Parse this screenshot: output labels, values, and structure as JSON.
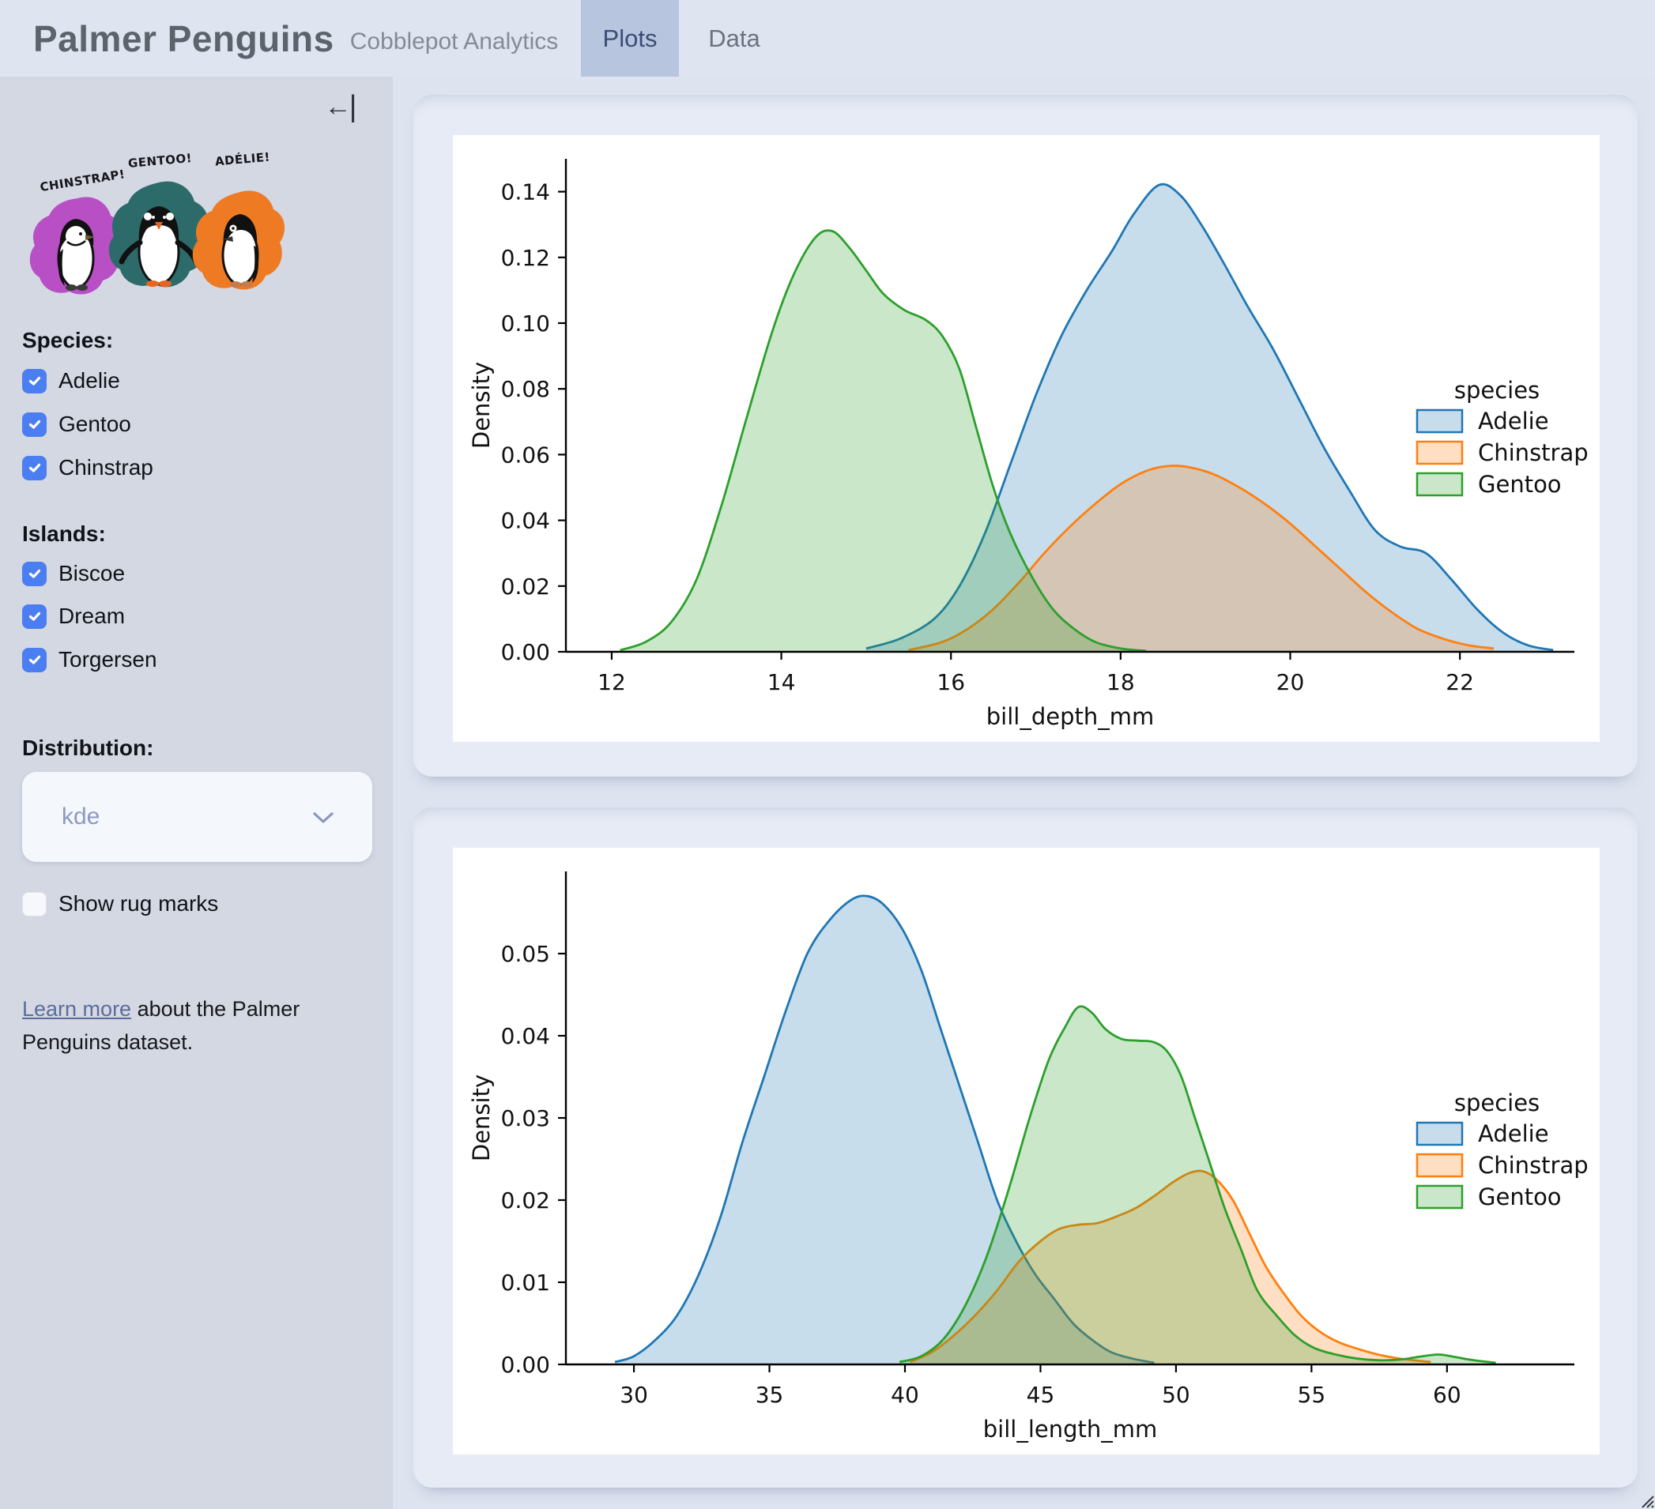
{
  "header": {
    "title": "Palmer Penguins",
    "subtitle": "Cobblepot Analytics",
    "tabs": [
      {
        "label": "Plots",
        "active": true
      },
      {
        "label": "Data",
        "active": false
      }
    ]
  },
  "sidebar": {
    "collapse_icon_arrow": "←",
    "collapse_icon_bar": "|",
    "artwork": {
      "labels": [
        "CHINSTRAP!",
        "GENTOO!",
        "ADÉLIE!"
      ],
      "splash_colors": {
        "chinstrap": "#b84fc5",
        "gentoo": "#2d6b6a",
        "adelie": "#ee7b24"
      }
    },
    "species": {
      "label": "Species:",
      "options": [
        {
          "label": "Adelie",
          "checked": true
        },
        {
          "label": "Gentoo",
          "checked": true
        },
        {
          "label": "Chinstrap",
          "checked": true
        }
      ]
    },
    "islands": {
      "label": "Islands:",
      "options": [
        {
          "label": "Biscoe",
          "checked": true
        },
        {
          "label": "Dream",
          "checked": true
        },
        {
          "label": "Torgersen",
          "checked": true
        }
      ]
    },
    "distribution": {
      "label": "Distribution:",
      "value": "kde"
    },
    "rug": {
      "label": "Show rug marks",
      "checked": false
    },
    "footer": {
      "link_text": "Learn more",
      "text_after": " about the Palmer Penguins dataset."
    }
  },
  "colors": {
    "checkbox_accent": "#4b7ef0",
    "tab_active_bg": "#b7c5de",
    "adelie": "#1f77b4",
    "chinstrap": "#ff7f0e",
    "gentoo": "#2ca02c",
    "fill_opacity": 0.25
  },
  "chart_data": [
    {
      "type": "area",
      "kind": "kde-density",
      "xlabel": "bill_depth_mm",
      "ylabel": "Density",
      "xlim": [
        11.46,
        23.35
      ],
      "ylim": [
        0,
        0.15
      ],
      "xticks": [
        12,
        14,
        16,
        18,
        20,
        22
      ],
      "yticks": [
        "0.00",
        "0.02",
        "0.04",
        "0.06",
        "0.08",
        "0.10",
        "0.12",
        "0.14"
      ],
      "legend": {
        "title": "species",
        "position": "right",
        "entries": [
          {
            "label": "Adelie",
            "color": "#1f77b4"
          },
          {
            "label": "Chinstrap",
            "color": "#ff7f0e"
          },
          {
            "label": "Gentoo",
            "color": "#2ca02c"
          }
        ]
      },
      "series": [
        {
          "name": "Adelie",
          "color": "#1f77b4",
          "points": [
            [
              15.0,
              0.001
            ],
            [
              15.4,
              0.004
            ],
            [
              15.8,
              0.01
            ],
            [
              16.1,
              0.02
            ],
            [
              16.4,
              0.036
            ],
            [
              16.7,
              0.057
            ],
            [
              17.0,
              0.078
            ],
            [
              17.3,
              0.096
            ],
            [
              17.6,
              0.11
            ],
            [
              17.9,
              0.122
            ],
            [
              18.15,
              0.133
            ],
            [
              18.45,
              0.142
            ],
            [
              18.7,
              0.139
            ],
            [
              18.95,
              0.13
            ],
            [
              19.2,
              0.119
            ],
            [
              19.5,
              0.105
            ],
            [
              19.8,
              0.092
            ],
            [
              20.1,
              0.077
            ],
            [
              20.4,
              0.062
            ],
            [
              20.7,
              0.049
            ],
            [
              21.0,
              0.037
            ],
            [
              21.3,
              0.032
            ],
            [
              21.6,
              0.03
            ],
            [
              21.9,
              0.022
            ],
            [
              22.2,
              0.013
            ],
            [
              22.5,
              0.006
            ],
            [
              22.8,
              0.002
            ],
            [
              23.1,
              0.0005
            ]
          ]
        },
        {
          "name": "Chinstrap",
          "color": "#ff7f0e",
          "points": [
            [
              15.5,
              0.0005
            ],
            [
              15.9,
              0.003
            ],
            [
              16.2,
              0.007
            ],
            [
              16.5,
              0.013
            ],
            [
              16.8,
              0.021
            ],
            [
              17.1,
              0.03
            ],
            [
              17.4,
              0.038
            ],
            [
              17.7,
              0.045
            ],
            [
              18.0,
              0.051
            ],
            [
              18.3,
              0.055
            ],
            [
              18.55,
              0.0565
            ],
            [
              18.8,
              0.0562
            ],
            [
              19.1,
              0.054
            ],
            [
              19.4,
              0.05
            ],
            [
              19.7,
              0.045
            ],
            [
              20.0,
              0.039
            ],
            [
              20.3,
              0.032
            ],
            [
              20.6,
              0.025
            ],
            [
              20.9,
              0.018
            ],
            [
              21.2,
              0.012
            ],
            [
              21.5,
              0.007
            ],
            [
              21.8,
              0.004
            ],
            [
              22.1,
              0.002
            ],
            [
              22.4,
              0.001
            ]
          ]
        },
        {
          "name": "Gentoo",
          "color": "#2ca02c",
          "points": [
            [
              12.1,
              0.0005
            ],
            [
              12.4,
              0.003
            ],
            [
              12.7,
              0.009
            ],
            [
              13.0,
              0.022
            ],
            [
              13.3,
              0.045
            ],
            [
              13.6,
              0.072
            ],
            [
              13.9,
              0.098
            ],
            [
              14.15,
              0.115
            ],
            [
              14.4,
              0.126
            ],
            [
              14.6,
              0.128
            ],
            [
              14.8,
              0.123
            ],
            [
              15.0,
              0.116
            ],
            [
              15.2,
              0.109
            ],
            [
              15.45,
              0.104
            ],
            [
              15.7,
              0.101
            ],
            [
              15.9,
              0.096
            ],
            [
              16.1,
              0.086
            ],
            [
              16.3,
              0.068
            ],
            [
              16.5,
              0.05
            ],
            [
              16.7,
              0.036
            ],
            [
              16.95,
              0.023
            ],
            [
              17.2,
              0.013
            ],
            [
              17.45,
              0.007
            ],
            [
              17.7,
              0.003
            ],
            [
              18.0,
              0.001
            ],
            [
              18.3,
              0.0003
            ]
          ]
        }
      ]
    },
    {
      "type": "area",
      "kind": "kde-density",
      "xlabel": "bill_length_mm",
      "ylabel": "Density",
      "xlim": [
        27.49,
        64.7
      ],
      "ylim": [
        0,
        0.06
      ],
      "xticks": [
        30,
        35,
        40,
        45,
        50,
        55,
        60
      ],
      "yticks": [
        "0.00",
        "0.01",
        "0.02",
        "0.03",
        "0.04",
        "0.05"
      ],
      "legend": {
        "title": "species",
        "position": "right",
        "entries": [
          {
            "label": "Adelie",
            "color": "#1f77b4"
          },
          {
            "label": "Chinstrap",
            "color": "#ff7f0e"
          },
          {
            "label": "Gentoo",
            "color": "#2ca02c"
          }
        ]
      },
      "series": [
        {
          "name": "Adelie",
          "color": "#1f77b4",
          "points": [
            [
              29.3,
              0.0003
            ],
            [
              30.0,
              0.001
            ],
            [
              30.8,
              0.003
            ],
            [
              31.6,
              0.006
            ],
            [
              32.4,
              0.011
            ],
            [
              33.2,
              0.018
            ],
            [
              34.0,
              0.027
            ],
            [
              34.8,
              0.035
            ],
            [
              35.6,
              0.043
            ],
            [
              36.4,
              0.05
            ],
            [
              37.2,
              0.054
            ],
            [
              38.0,
              0.0565
            ],
            [
              38.6,
              0.057
            ],
            [
              39.2,
              0.056
            ],
            [
              39.9,
              0.053
            ],
            [
              40.6,
              0.048
            ],
            [
              41.3,
              0.041
            ],
            [
              42.0,
              0.034
            ],
            [
              42.7,
              0.027
            ],
            [
              43.4,
              0.02
            ],
            [
              44.1,
              0.015
            ],
            [
              44.8,
              0.011
            ],
            [
              45.5,
              0.008
            ],
            [
              46.2,
              0.005
            ],
            [
              46.9,
              0.003
            ],
            [
              47.6,
              0.0015
            ],
            [
              48.4,
              0.0007
            ],
            [
              49.2,
              0.0002
            ]
          ]
        },
        {
          "name": "Chinstrap",
          "color": "#ff7f0e",
          "points": [
            [
              40.2,
              0.0003
            ],
            [
              41.0,
              0.0015
            ],
            [
              41.8,
              0.0035
            ],
            [
              42.6,
              0.006
            ],
            [
              43.4,
              0.009
            ],
            [
              44.2,
              0.0125
            ],
            [
              45.0,
              0.015
            ],
            [
              45.7,
              0.0165
            ],
            [
              46.4,
              0.017
            ],
            [
              47.1,
              0.0172
            ],
            [
              47.8,
              0.018
            ],
            [
              48.5,
              0.019
            ],
            [
              49.2,
              0.0205
            ],
            [
              49.9,
              0.0222
            ],
            [
              50.5,
              0.0233
            ],
            [
              51.0,
              0.0235
            ],
            [
              51.5,
              0.0225
            ],
            [
              52.1,
              0.02
            ],
            [
              52.7,
              0.016
            ],
            [
              53.3,
              0.012
            ],
            [
              53.9,
              0.009
            ],
            [
              54.6,
              0.006
            ],
            [
              55.3,
              0.004
            ],
            [
              56.0,
              0.0027
            ],
            [
              56.8,
              0.0018
            ],
            [
              57.6,
              0.0011
            ],
            [
              58.5,
              0.0006
            ],
            [
              59.4,
              0.0003
            ]
          ]
        },
        {
          "name": "Gentoo",
          "color": "#2ca02c",
          "points": [
            [
              39.8,
              0.0003
            ],
            [
              40.6,
              0.001
            ],
            [
              41.4,
              0.003
            ],
            [
              42.2,
              0.007
            ],
            [
              43.0,
              0.013
            ],
            [
              43.8,
              0.021
            ],
            [
              44.6,
              0.03
            ],
            [
              45.3,
              0.037
            ],
            [
              45.9,
              0.041
            ],
            [
              46.4,
              0.0435
            ],
            [
              46.9,
              0.0428
            ],
            [
              47.4,
              0.0408
            ],
            [
              48.0,
              0.0396
            ],
            [
              48.6,
              0.0394
            ],
            [
              49.2,
              0.0392
            ],
            [
              49.7,
              0.038
            ],
            [
              50.2,
              0.035
            ],
            [
              50.7,
              0.03
            ],
            [
              51.2,
              0.025
            ],
            [
              51.8,
              0.019
            ],
            [
              52.4,
              0.014
            ],
            [
              53.0,
              0.009
            ],
            [
              53.7,
              0.006
            ],
            [
              54.4,
              0.0035
            ],
            [
              55.1,
              0.002
            ],
            [
              55.9,
              0.0012
            ],
            [
              56.7,
              0.0007
            ],
            [
              57.5,
              0.0005
            ],
            [
              58.3,
              0.0006
            ],
            [
              59.1,
              0.001
            ],
            [
              59.7,
              0.0012
            ],
            [
              60.3,
              0.0009
            ],
            [
              61.0,
              0.0005
            ],
            [
              61.8,
              0.0002
            ]
          ]
        }
      ]
    }
  ]
}
